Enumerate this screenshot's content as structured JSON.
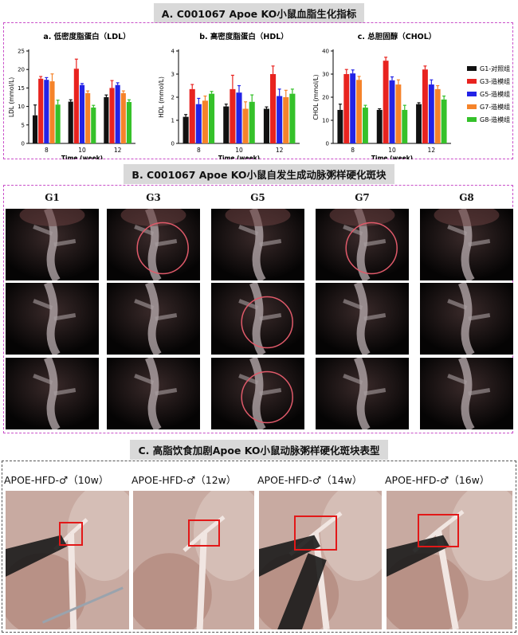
{
  "section_a_title": "A. C001067 Apoe KO小鼠血脂生化指标",
  "section_b_title": "B. C001067 Apoe KO小鼠自发生成动脉粥样硬化斑块",
  "section_c_title": "C. 高脂饮食加剧Apoe KO小鼠动脉粥样硬化斑块表型",
  "legend": [
    "G1-对照组",
    "G3-造模组",
    "G5-造模组",
    "G7-造模组",
    "G8-造模组"
  ],
  "colors": {
    "G1": "#111111",
    "G3": "#e8231f",
    "G5": "#2323e6",
    "G7": "#f5832a",
    "G8": "#35c12a",
    "circle": "#e05a6a",
    "box": "#e21818"
  },
  "chart_data": [
    {
      "type": "bar",
      "title": "a. 低密度脂蛋白（LDL）",
      "xlabel": "Time (week)",
      "ylabel": "LDL (mmol/L)",
      "categories": [
        "8",
        "10",
        "12"
      ],
      "ylim": [
        0,
        25
      ],
      "yticks": [
        0,
        5,
        10,
        15,
        20,
        25
      ],
      "series": [
        {
          "name": "G1-对照组",
          "values": [
            7.6,
            11.3,
            12.5
          ],
          "errors": [
            2.8,
            0.5,
            0.6
          ]
        },
        {
          "name": "G3-造模组",
          "values": [
            17.5,
            20.2,
            15.0
          ],
          "errors": [
            0.6,
            2.6,
            2.0
          ]
        },
        {
          "name": "G5-造模组",
          "values": [
            17.2,
            15.8,
            15.8
          ],
          "errors": [
            0.6,
            0.4,
            0.6
          ]
        },
        {
          "name": "G7-造模组",
          "values": [
            16.8,
            13.6,
            13.6
          ],
          "errors": [
            2.0,
            0.6,
            0.6
          ]
        },
        {
          "name": "G8-造模组",
          "values": [
            10.5,
            9.7,
            11.2
          ],
          "errors": [
            1.2,
            0.6,
            0.6
          ]
        }
      ]
    },
    {
      "type": "bar",
      "title": "b. 高密度脂蛋白（HDL）",
      "xlabel": "Time (week)",
      "ylabel": "HDL (mmol/L)",
      "categories": [
        "8",
        "10",
        "12"
      ],
      "ylim": [
        0,
        4
      ],
      "yticks": [
        0,
        1,
        2,
        3,
        4
      ],
      "series": [
        {
          "name": "G1-对照组",
          "values": [
            1.15,
            1.6,
            1.5
          ],
          "errors": [
            0.1,
            0.1,
            0.08
          ]
        },
        {
          "name": "G3-造模组",
          "values": [
            2.35,
            2.35,
            3.0
          ],
          "errors": [
            0.2,
            0.6,
            0.35
          ]
        },
        {
          "name": "G5-造模组",
          "values": [
            1.7,
            2.2,
            2.05
          ],
          "errors": [
            0.25,
            0.3,
            0.3
          ]
        },
        {
          "name": "G7-造模组",
          "values": [
            1.85,
            1.5,
            2.0
          ],
          "errors": [
            0.2,
            0.3,
            0.3
          ]
        },
        {
          "name": "G8-造模组",
          "values": [
            2.15,
            1.8,
            2.15
          ],
          "errors": [
            0.1,
            0.3,
            0.2
          ]
        }
      ]
    },
    {
      "type": "bar",
      "title": "c. 总胆固醇（CHOL）",
      "xlabel": "Time (week)",
      "ylabel": "CHOL (mmol/L)",
      "categories": [
        "8",
        "10",
        "12"
      ],
      "ylim": [
        0,
        40
      ],
      "yticks": [
        0,
        10,
        20,
        30,
        40
      ],
      "series": [
        {
          "name": "G1-对照组",
          "values": [
            14.5,
            14.5,
            17.0
          ],
          "errors": [
            2.5,
            0.5,
            0.6
          ]
        },
        {
          "name": "G3-造模组",
          "values": [
            30.0,
            35.8,
            32.0
          ],
          "errors": [
            2.0,
            1.5,
            1.5
          ]
        },
        {
          "name": "G5-造模组",
          "values": [
            30.3,
            27.3,
            25.5
          ],
          "errors": [
            1.5,
            1.5,
            2.0
          ]
        },
        {
          "name": "G7-造模组",
          "values": [
            27.5,
            25.5,
            23.5
          ],
          "errors": [
            1.5,
            2.0,
            1.5
          ]
        },
        {
          "name": "G8-造模组",
          "values": [
            15.5,
            14.5,
            19.0
          ],
          "errors": [
            1.0,
            2.0,
            1.5
          ]
        }
      ]
    }
  ],
  "gallery_b": {
    "columns": [
      "G1",
      "G3",
      "G5",
      "G7",
      "G8"
    ],
    "circled": [
      [
        0,
        1
      ],
      [
        0,
        3
      ],
      [
        1,
        2
      ],
      [
        2,
        2
      ]
    ]
  },
  "gallery_c": {
    "labels": [
      "APOE-HFD-♂（10w）",
      "APOE-HFD-♂（12w）",
      "APOE-HFD-♂（14w）",
      "APOE-HFD-♂（16w）"
    ]
  }
}
